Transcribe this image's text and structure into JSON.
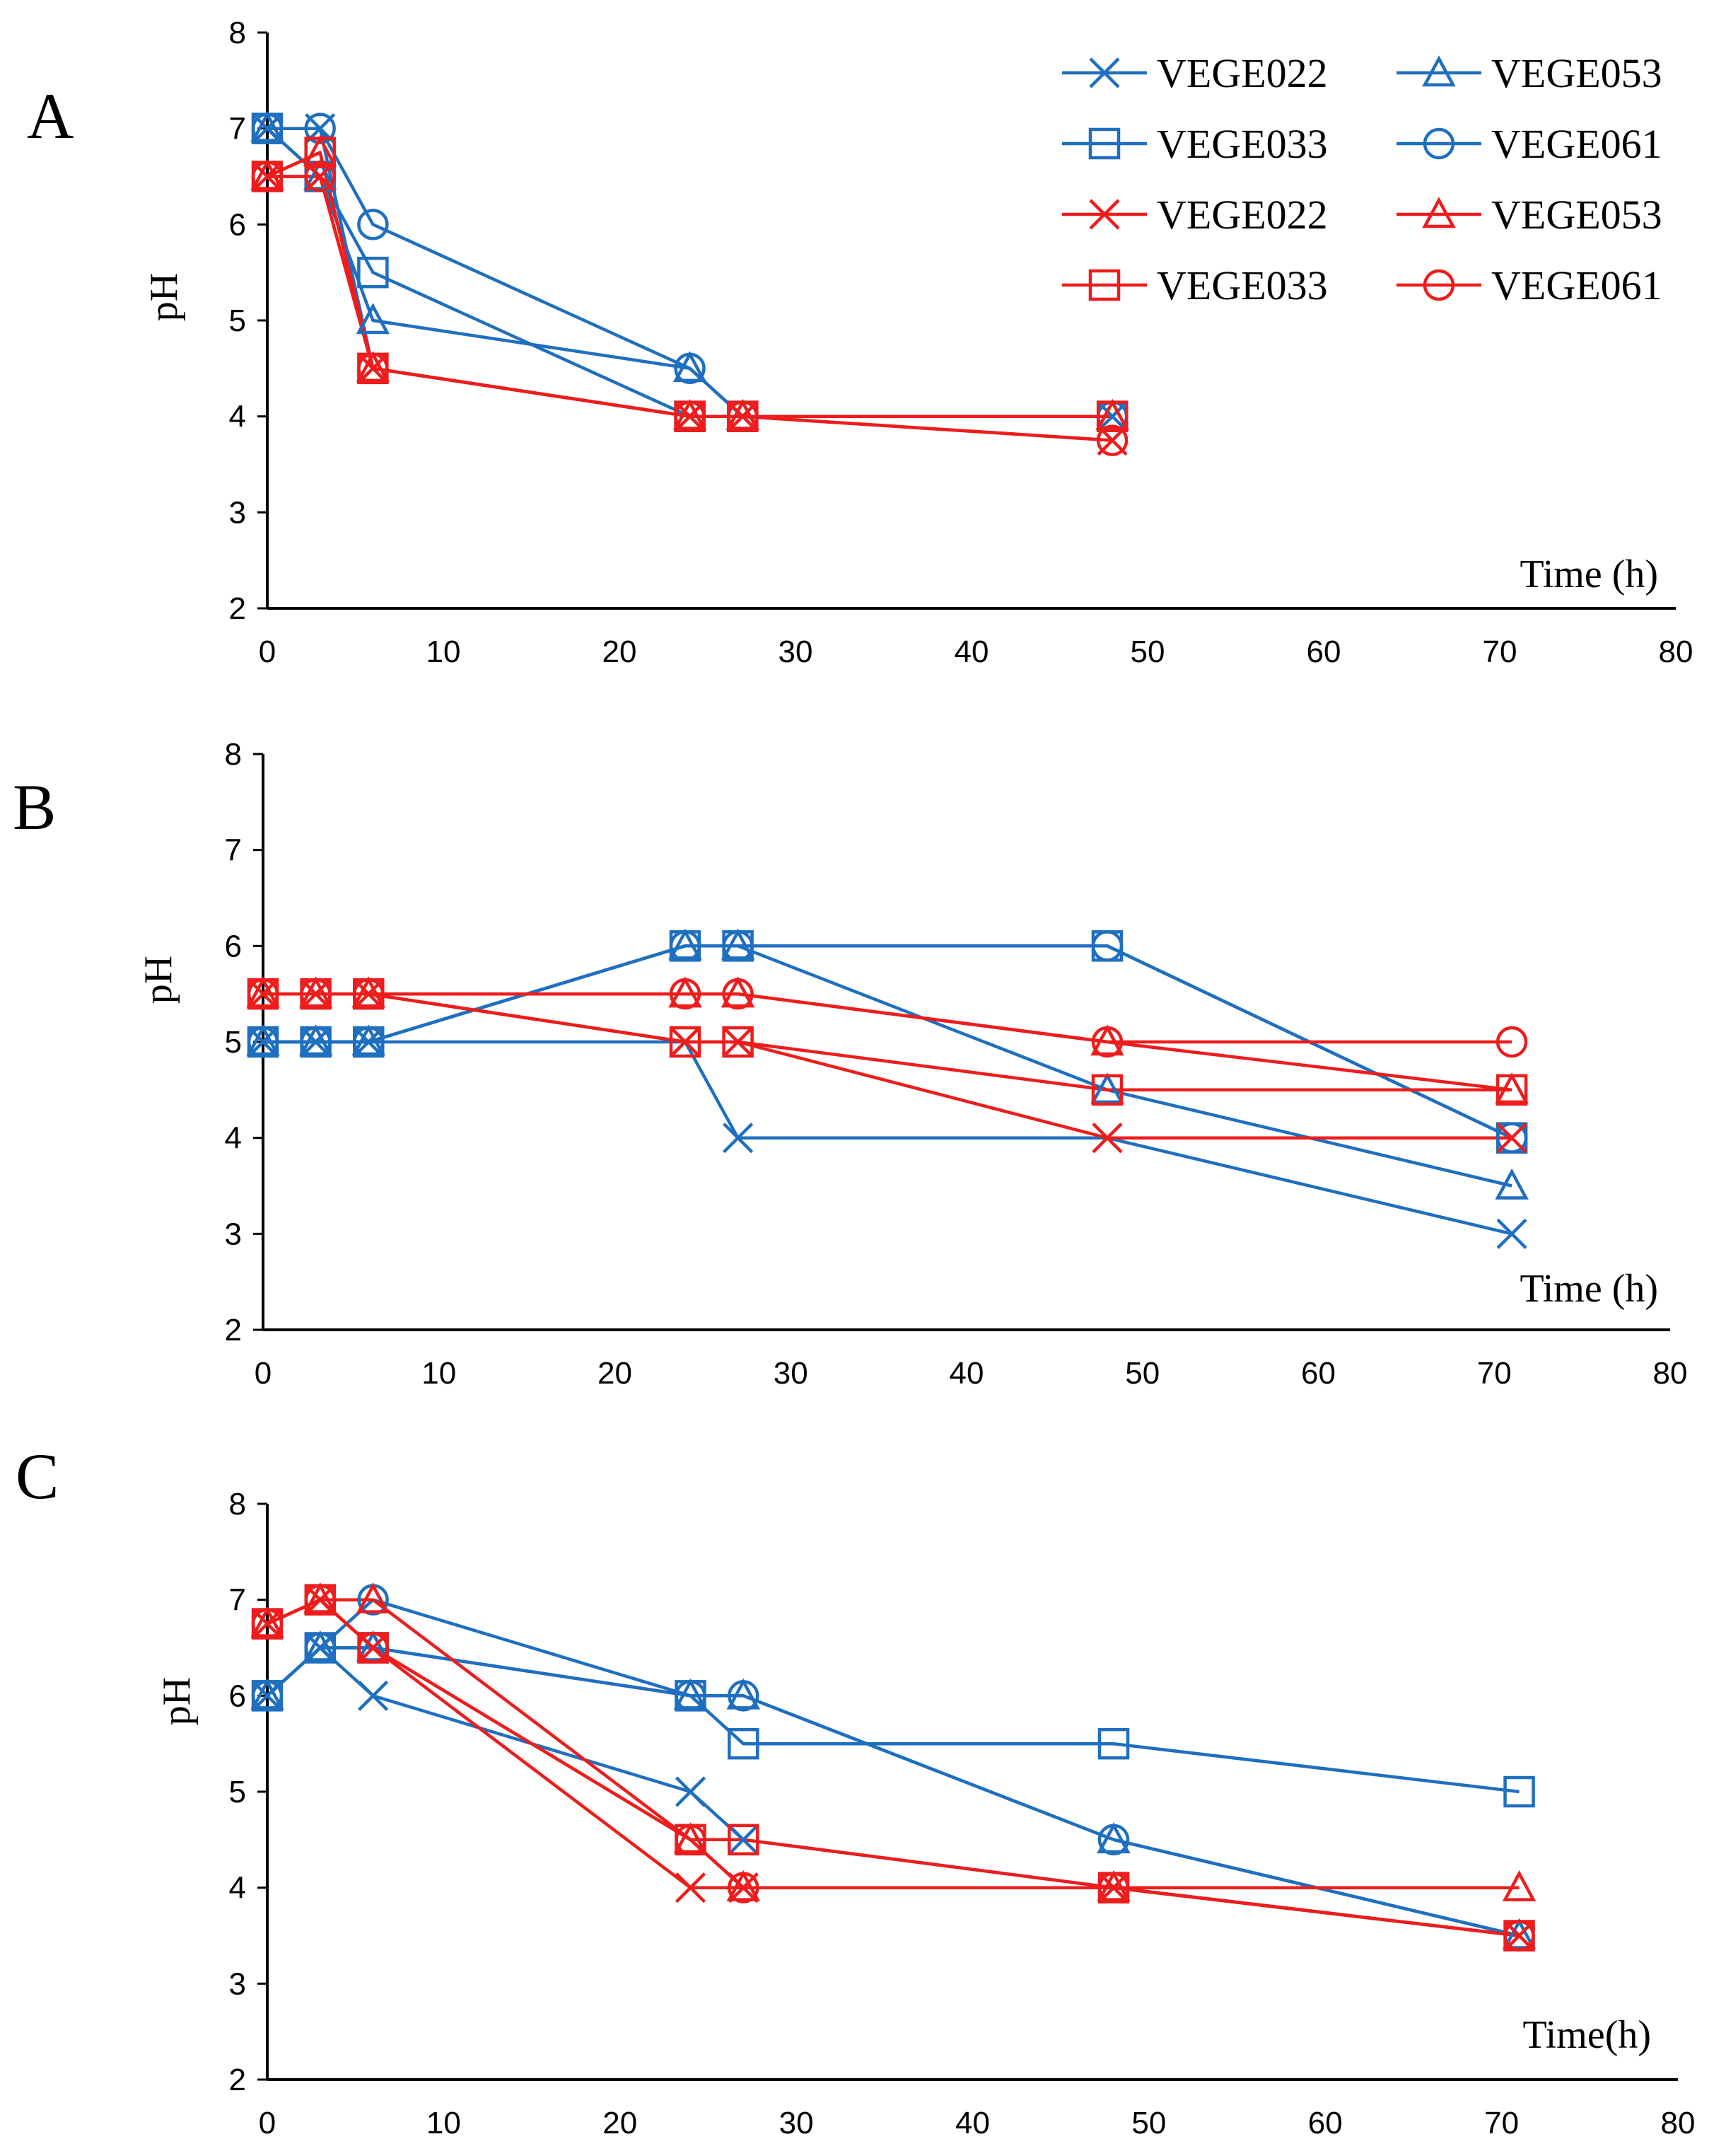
{
  "colors": {
    "blue": "#1f6fc0",
    "red": "#ee1c1c",
    "axis": "#000000"
  },
  "legend": [
    {
      "label": "VEGE022",
      "color": "blue",
      "marker": "x"
    },
    {
      "label": "VEGE053",
      "color": "blue",
      "marker": "triangle"
    },
    {
      "label": "VEGE033",
      "color": "blue",
      "marker": "square"
    },
    {
      "label": "VEGE061",
      "color": "blue",
      "marker": "circle"
    },
    {
      "label": "VEGE022",
      "color": "red",
      "marker": "x"
    },
    {
      "label": "VEGE053",
      "color": "red",
      "marker": "triangle"
    },
    {
      "label": "VEGE033",
      "color": "red",
      "marker": "square"
    },
    {
      "label": "VEGE061",
      "color": "red",
      "marker": "circle"
    }
  ],
  "chart_data": [
    {
      "type": "line",
      "panel_label": "A",
      "ylabel": "pH",
      "xlabel": "Time (h)",
      "xlim": [
        0,
        80
      ],
      "xticks": [
        0,
        10,
        20,
        30,
        40,
        50,
        60,
        70,
        80
      ],
      "ylim": [
        2,
        8
      ],
      "yticks": [
        2,
        3,
        4,
        5,
        6,
        7,
        8
      ],
      "series": [
        {
          "name": "VEGE022",
          "color": "blue",
          "marker": "x",
          "x": [
            0,
            3,
            6,
            24,
            27,
            48
          ],
          "y": [
            7,
            7,
            4.5,
            4,
            4,
            4
          ]
        },
        {
          "name": "VEGE053",
          "color": "blue",
          "marker": "triangle",
          "x": [
            0,
            3,
            6,
            24,
            27,
            48
          ],
          "y": [
            7,
            6.5,
            5,
            4.5,
            4,
            4
          ]
        },
        {
          "name": "VEGE033",
          "color": "blue",
          "marker": "square",
          "x": [
            0,
            3,
            6,
            24,
            27,
            48
          ],
          "y": [
            7,
            6.5,
            5.5,
            4,
            4,
            4
          ]
        },
        {
          "name": "VEGE061",
          "color": "blue",
          "marker": "circle",
          "x": [
            0,
            3,
            6,
            24,
            27,
            48
          ],
          "y": [
            7,
            7,
            6,
            4.5,
            4,
            4
          ]
        },
        {
          "name": "VEGE022",
          "color": "red",
          "marker": "x",
          "x": [
            0,
            3,
            6,
            24,
            27,
            48
          ],
          "y": [
            6.5,
            6.5,
            4.5,
            4,
            4,
            3.75
          ]
        },
        {
          "name": "VEGE053",
          "color": "red",
          "marker": "triangle",
          "x": [
            0,
            3,
            6,
            24,
            27,
            48
          ],
          "y": [
            6.5,
            6.75,
            4.5,
            4,
            4,
            4
          ]
        },
        {
          "name": "VEGE033",
          "color": "red",
          "marker": "square",
          "x": [
            0,
            3,
            6,
            24,
            27,
            48
          ],
          "y": [
            6.5,
            6.75,
            4.5,
            4,
            4,
            4
          ]
        },
        {
          "name": "VEGE061",
          "color": "red",
          "marker": "circle",
          "x": [
            0,
            3,
            6,
            24,
            27,
            48
          ],
          "y": [
            6.5,
            6.5,
            4.5,
            4,
            4,
            3.75
          ]
        }
      ]
    },
    {
      "type": "line",
      "panel_label": "B",
      "ylabel": "pH",
      "xlabel": "Time (h)",
      "xlim": [
        0,
        80
      ],
      "xticks": [
        0,
        10,
        20,
        30,
        40,
        50,
        60,
        70,
        80
      ],
      "ylim": [
        2,
        8
      ],
      "yticks": [
        2,
        3,
        4,
        5,
        6,
        7,
        8
      ],
      "series": [
        {
          "name": "VEGE022",
          "color": "blue",
          "marker": "x",
          "x": [
            0,
            3,
            6,
            24,
            27,
            48,
            71
          ],
          "y": [
            5,
            5,
            5,
            5,
            4,
            4,
            3
          ]
        },
        {
          "name": "VEGE053",
          "color": "blue",
          "marker": "triangle",
          "x": [
            0,
            3,
            6,
            24,
            27,
            48,
            71
          ],
          "y": [
            5,
            5,
            5,
            6,
            6,
            4.5,
            3.5
          ]
        },
        {
          "name": "VEGE033",
          "color": "blue",
          "marker": "square",
          "x": [
            0,
            3,
            6,
            24,
            27,
            48,
            71
          ],
          "y": [
            5,
            5,
            5,
            6,
            6,
            6,
            4
          ]
        },
        {
          "name": "VEGE061",
          "color": "blue",
          "marker": "circle",
          "x": [
            0,
            3,
            6,
            24,
            27,
            48,
            71
          ],
          "y": [
            5,
            5,
            5,
            6,
            6,
            6,
            4
          ]
        },
        {
          "name": "VEGE022",
          "color": "red",
          "marker": "x",
          "x": [
            0,
            3,
            6,
            24,
            27,
            48,
            71
          ],
          "y": [
            5.5,
            5.5,
            5.5,
            5,
            5,
            4,
            4
          ]
        },
        {
          "name": "VEGE053",
          "color": "red",
          "marker": "triangle",
          "x": [
            0,
            3,
            6,
            24,
            27,
            48,
            71
          ],
          "y": [
            5.5,
            5.5,
            5.5,
            5.5,
            5.5,
            5,
            4.5
          ]
        },
        {
          "name": "VEGE033",
          "color": "red",
          "marker": "square",
          "x": [
            0,
            3,
            6,
            24,
            27,
            48,
            71
          ],
          "y": [
            5.5,
            5.5,
            5.5,
            5,
            5,
            4.5,
            4.5
          ]
        },
        {
          "name": "VEGE061",
          "color": "red",
          "marker": "circle",
          "x": [
            0,
            3,
            6,
            24,
            27,
            48,
            71
          ],
          "y": [
            5.5,
            5.5,
            5.5,
            5.5,
            5.5,
            5,
            5
          ]
        }
      ]
    },
    {
      "type": "line",
      "panel_label": "C",
      "ylabel": "pH",
      "xlabel": "Time(h)",
      "xlim": [
        0,
        80
      ],
      "xticks": [
        0,
        10,
        20,
        30,
        40,
        50,
        60,
        70,
        80
      ],
      "ylim": [
        2,
        8
      ],
      "yticks": [
        2,
        3,
        4,
        5,
        6,
        7,
        8
      ],
      "series": [
        {
          "name": "VEGE022",
          "color": "blue",
          "marker": "x",
          "x": [
            0,
            3,
            6,
            24,
            27,
            48,
            71
          ],
          "y": [
            6,
            6.5,
            6,
            5,
            4.5,
            4,
            3.5
          ]
        },
        {
          "name": "VEGE053",
          "color": "blue",
          "marker": "triangle",
          "x": [
            0,
            3,
            6,
            24,
            27,
            48,
            71
          ],
          "y": [
            6,
            6.5,
            6.5,
            6,
            6,
            4.5,
            3.5
          ]
        },
        {
          "name": "VEGE033",
          "color": "blue",
          "marker": "square",
          "x": [
            0,
            3,
            6,
            24,
            27,
            48,
            71
          ],
          "y": [
            6,
            6.5,
            6.5,
            6,
            5.5,
            5.5,
            5
          ]
        },
        {
          "name": "VEGE061",
          "color": "blue",
          "marker": "circle",
          "x": [
            0,
            3,
            6,
            24,
            27,
            48,
            71
          ],
          "y": [
            6,
            6.5,
            7,
            6,
            6,
            4.5,
            3.5
          ]
        },
        {
          "name": "VEGE022",
          "color": "red",
          "marker": "x",
          "x": [
            0,
            3,
            6,
            24,
            27,
            48,
            71
          ],
          "y": [
            6.75,
            7,
            6.5,
            4,
            4,
            4,
            3.5
          ]
        },
        {
          "name": "VEGE053",
          "color": "red",
          "marker": "triangle",
          "x": [
            0,
            3,
            6,
            24,
            27,
            48,
            71
          ],
          "y": [
            6.75,
            7,
            7,
            4.5,
            4,
            4,
            4
          ]
        },
        {
          "name": "VEGE033",
          "color": "red",
          "marker": "square",
          "x": [
            0,
            3,
            6,
            24,
            27,
            48,
            71
          ],
          "y": [
            6.75,
            7,
            6.5,
            4.5,
            4.5,
            4,
            3.5
          ]
        },
        {
          "name": "VEGE061",
          "color": "red",
          "marker": "circle",
          "x": [
            0,
            3,
            6,
            24,
            27,
            48,
            71
          ],
          "y": [
            6.75,
            7,
            6.5,
            4.5,
            4,
            4,
            3.5
          ]
        }
      ]
    }
  ]
}
